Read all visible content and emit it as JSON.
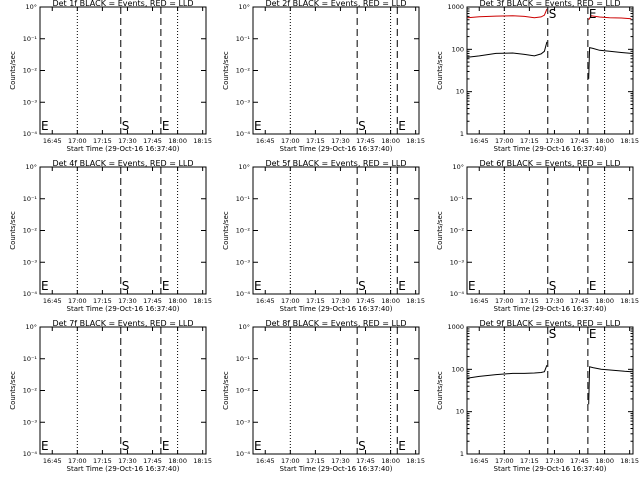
{
  "shared": {
    "xlabel": "Start Time (29-Oct-16 16:37:40)",
    "ylabel": "Counts/sec",
    "x_ticks": [
      "16:45",
      "17:00",
      "17:15",
      "17:30",
      "17:45",
      "18:00",
      "18:15"
    ],
    "log_ticks": [
      "10°",
      "10⁻¹",
      "10⁻²",
      "10⁻³",
      "10⁻⁴"
    ],
    "count_ticks": [
      "1",
      "10",
      "100",
      "1000"
    ]
  },
  "chart_data": [
    {
      "type": "line",
      "title": "Det 1f BLACK = Events, RED = LLD",
      "scale": "log_small",
      "markers": [
        {
          "label": "E",
          "x": "16:37:40"
        },
        {
          "label": "S",
          "x": "17:26"
        },
        {
          "label": "E",
          "x": "17:50"
        }
      ],
      "series": []
    },
    {
      "type": "line",
      "title": "Det 2f BLACK = Events, RED = LLD",
      "scale": "log_small",
      "markers": [
        {
          "label": "E",
          "x": "16:37:40"
        },
        {
          "label": "S",
          "x": "17:40"
        },
        {
          "label": "E",
          "x": "18:04"
        }
      ],
      "series": []
    },
    {
      "type": "line",
      "title": "Det 3f BLACK = Events, RED = LLD",
      "scale": "counts",
      "ylim": [
        1,
        1000
      ],
      "markers": [
        {
          "label": "S",
          "x": "17:26"
        },
        {
          "label": "E",
          "x": "17:50"
        }
      ],
      "series": [
        {
          "color": "#000000",
          "x": [
            "16:38",
            "16:45",
            "16:55",
            "17:05",
            "17:12",
            "17:18",
            "17:22",
            "17:24",
            "17:25:30",
            "17:50:30",
            "17:51",
            "17:53",
            "17:57",
            "18:03",
            "18:10",
            "18:16"
          ],
          "y": [
            65,
            70,
            80,
            82,
            76,
            70,
            78,
            90,
            150,
            20,
            110,
            105,
            95,
            90,
            84,
            80
          ]
        },
        {
          "color": "#cc0000",
          "x": [
            "16:38",
            "16:45",
            "16:55",
            "17:05",
            "17:12",
            "17:18",
            "17:22",
            "17:24",
            "17:25:30",
            "17:50:30",
            "17:52",
            "17:57",
            "18:03",
            "18:10",
            "18:16"
          ],
          "y": [
            560,
            590,
            610,
            620,
            600,
            560,
            585,
            640,
            900,
            500,
            620,
            580,
            560,
            550,
            530
          ]
        }
      ]
    },
    {
      "type": "line",
      "title": "Det 4f BLACK = Events, RED = LLD",
      "scale": "log_small",
      "markers": [
        {
          "label": "E",
          "x": "16:37:40"
        },
        {
          "label": "S",
          "x": "17:26"
        },
        {
          "label": "E",
          "x": "17:50"
        }
      ],
      "series": []
    },
    {
      "type": "line",
      "title": "Det 5f BLACK = Events, RED = LLD",
      "scale": "log_small",
      "markers": [
        {
          "label": "E",
          "x": "16:37:40"
        },
        {
          "label": "S",
          "x": "17:40"
        },
        {
          "label": "E",
          "x": "18:04"
        }
      ],
      "series": []
    },
    {
      "type": "line",
      "title": "Det 6f BLACK = Events, RED = LLD",
      "scale": "log_small",
      "markers": [
        {
          "label": "E",
          "x": "16:37:40"
        },
        {
          "label": "S",
          "x": "17:26"
        },
        {
          "label": "E",
          "x": "17:50"
        }
      ],
      "series": []
    },
    {
      "type": "line",
      "title": "Det 7f BLACK = Events, RED = LLD",
      "scale": "log_small",
      "markers": [
        {
          "label": "E",
          "x": "16:37:40"
        },
        {
          "label": "S",
          "x": "17:26"
        },
        {
          "label": "E",
          "x": "17:50"
        }
      ],
      "series": []
    },
    {
      "type": "line",
      "title": "Det 8f BLACK = Events, RED = LLD",
      "scale": "log_small",
      "markers": [
        {
          "label": "E",
          "x": "16:37:40"
        },
        {
          "label": "S",
          "x": "17:40"
        },
        {
          "label": "E",
          "x": "18:04"
        }
      ],
      "series": []
    },
    {
      "type": "line",
      "title": "Det 9f BLACK = Events, RED = LLD",
      "scale": "counts",
      "ylim": [
        1,
        1000
      ],
      "markers": [
        {
          "label": "S",
          "x": "17:26"
        },
        {
          "label": "E",
          "x": "17:50"
        }
      ],
      "series": [
        {
          "color": "#000000",
          "x": [
            "16:38",
            "16:45",
            "16:55",
            "17:05",
            "17:12",
            "17:18",
            "17:22",
            "17:24",
            "17:25:30",
            "17:50:30",
            "17:51",
            "17:53",
            "17:58",
            "18:05",
            "18:12",
            "18:16"
          ],
          "y": [
            62,
            68,
            75,
            80,
            80,
            82,
            84,
            88,
            125,
            15,
            115,
            110,
            100,
            95,
            90,
            88
          ]
        }
      ]
    }
  ]
}
